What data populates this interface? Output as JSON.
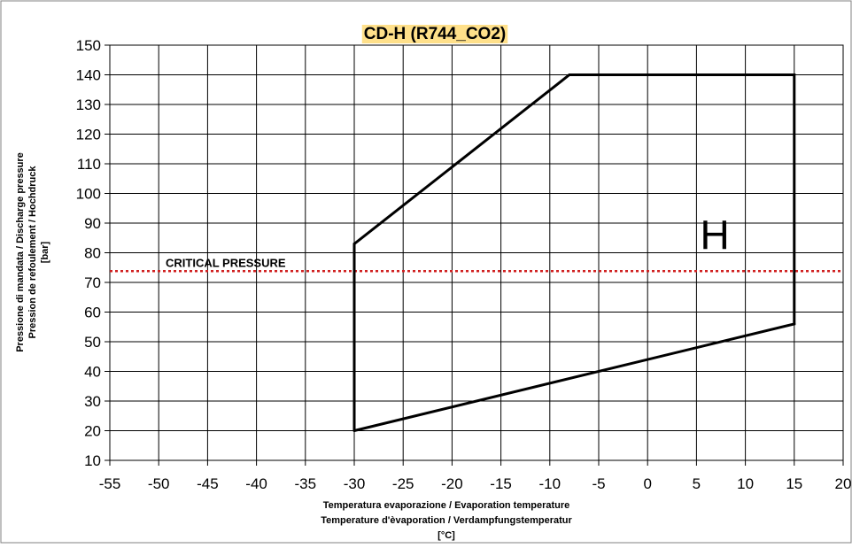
{
  "chart_data": {
    "type": "line",
    "title": "CD-H (R744_CO2)",
    "ylabel_lines": [
      "Pressione di mandata / Discharge pressure",
      "Pression de refoulement / Hochdruck",
      "[bar]"
    ],
    "xlabel_lines": [
      "Temperatura evaporazione /  Evaporation temperature",
      "Temperature d'èvaporation / Verdampfungstemperatur",
      "[°C]"
    ],
    "xlim": [
      -55,
      20
    ],
    "ylim": [
      10,
      150
    ],
    "x_ticks": [
      -55,
      -50,
      -45,
      -40,
      -35,
      -30,
      -25,
      -20,
      -15,
      -10,
      -5,
      0,
      5,
      10,
      15,
      20
    ],
    "y_ticks": [
      10,
      20,
      30,
      40,
      50,
      60,
      70,
      80,
      90,
      100,
      110,
      120,
      130,
      140,
      150
    ],
    "grid": true,
    "series": [
      {
        "name": "H",
        "closed": true,
        "color": "#000000",
        "points": [
          [
            -30,
            20
          ],
          [
            -30,
            83
          ],
          [
            -8,
            140
          ],
          [
            15,
            140
          ],
          [
            15,
            56
          ],
          [
            -30,
            20
          ]
        ]
      }
    ],
    "critical_pressure": {
      "label": "CRITICAL PRESSURE",
      "y": 73.8,
      "color": "#d02020"
    },
    "region_label": {
      "text": "H",
      "x": 7,
      "y": 86
    },
    "title_bg_color": "#ffe08a"
  }
}
